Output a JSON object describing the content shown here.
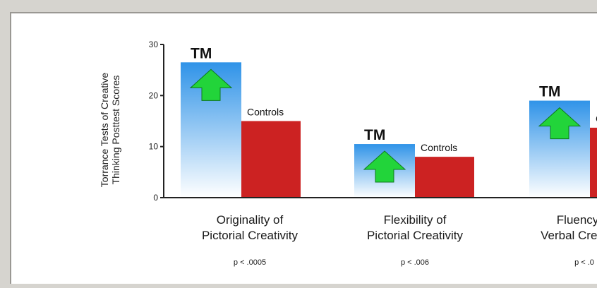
{
  "colors": {
    "tm_top": "#2f93e8",
    "tm_bottom": "#ffffff",
    "controls": "#cc2222",
    "arrow": "#22d43a",
    "axis": "#222222"
  },
  "chart_data": {
    "type": "bar",
    "ylabel": [
      "Torrance Tests of Creative",
      "Thinking Posttest Scores"
    ],
    "ylim": [
      0,
      30
    ],
    "yticks": [
      "0",
      "10",
      "20",
      "30"
    ],
    "series": [
      {
        "name": "TM",
        "values": [
          26.5,
          10.5,
          19
        ]
      },
      {
        "name": "Controls",
        "values": [
          15,
          8,
          13.7
        ]
      }
    ],
    "categories": [
      {
        "line1": "Originality of",
        "line2": "Pictorial Creativity",
        "p": "p < .0005"
      },
      {
        "line1": "Flexibility of",
        "line2": "Pictorial Creativity",
        "p": "p < .006"
      },
      {
        "line1": "Fluency of",
        "line2": "Verbal Creativity",
        "p": "p < .0"
      }
    ],
    "bar_labels": {
      "tm": "TM",
      "controls": "Controls"
    }
  }
}
